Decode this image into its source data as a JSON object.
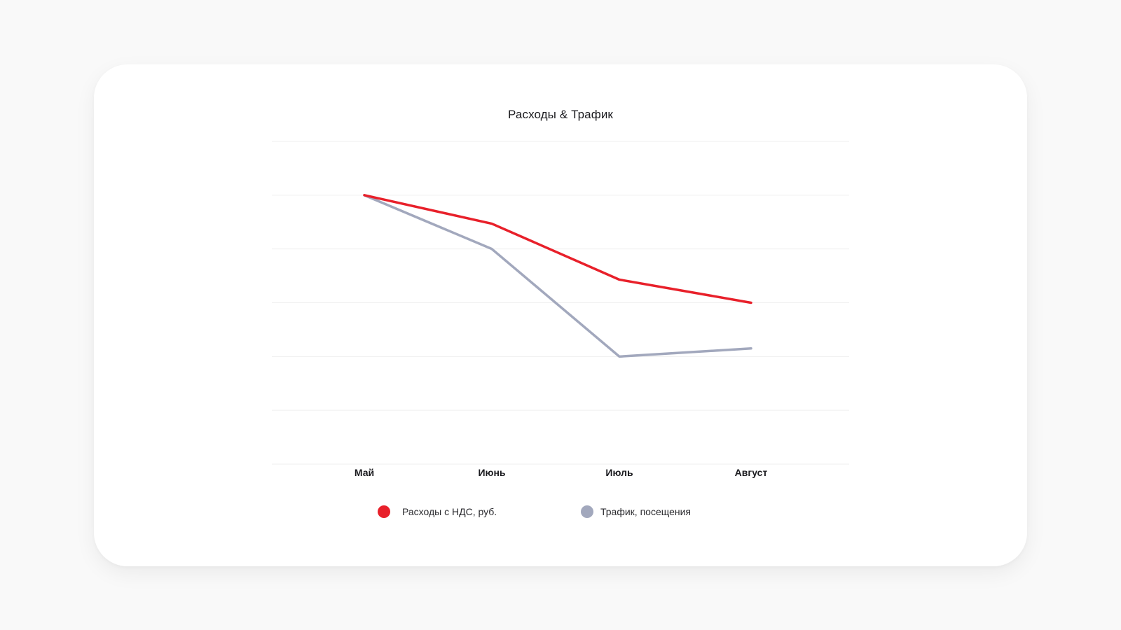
{
  "chart_data": {
    "type": "line",
    "title": "Расходы & Трафик",
    "xlabel": "",
    "ylabel": "",
    "categories": [
      "Май",
      "Июнь",
      "Июль",
      "Август"
    ],
    "ylim": [
      0,
      6
    ],
    "grid": true,
    "legend_position": "bottom",
    "series": [
      {
        "name": "Расходы с НДС, руб.",
        "color": "#e8202a",
        "values": [
          5.0,
          4.47,
          3.43,
          3.0
        ]
      },
      {
        "name": "Трафик, посещения",
        "color": "#a2a8bd",
        "values": [
          5.0,
          4.0,
          2.0,
          2.15
        ]
      }
    ]
  }
}
